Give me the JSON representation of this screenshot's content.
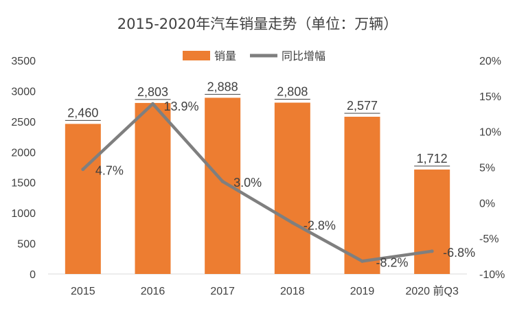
{
  "chart_data": {
    "type": "bar",
    "title": "2015-2020年汽车销量走势（单位：万辆）",
    "categories": [
      "2015",
      "2016",
      "2017",
      "2018",
      "2019",
      "2020 前Q3"
    ],
    "series": [
      {
        "name": "销量",
        "type": "bar",
        "axis": "left",
        "values": [
          2460,
          2803,
          2888,
          2808,
          2577,
          1712
        ],
        "labels": [
          "2,460",
          "2,803",
          "2,888",
          "2,808",
          "2,577",
          "1,712"
        ]
      },
      {
        "name": "同比增幅",
        "type": "line",
        "axis": "right",
        "values": [
          4.7,
          13.9,
          3.0,
          -2.8,
          -8.2,
          -6.8
        ],
        "labels": [
          "4.7%",
          "13.9%",
          "3.0%",
          "-2.8%",
          "-8.2%",
          "-6.8%"
        ]
      }
    ],
    "y_left": {
      "min": 0,
      "max": 3500,
      "ticks": [
        "0",
        "500",
        "1000",
        "1500",
        "2000",
        "2500",
        "3000",
        "3500"
      ]
    },
    "y_right": {
      "min": -10,
      "max": 20,
      "ticks": [
        "-10%",
        "-5%",
        "0%",
        "5%",
        "10%",
        "15%",
        "20%"
      ]
    },
    "legend_position": "top-center",
    "grid": false
  },
  "colors": {
    "bar": "#ED7D31",
    "line": "#7F7F7F",
    "text": "#404040"
  }
}
